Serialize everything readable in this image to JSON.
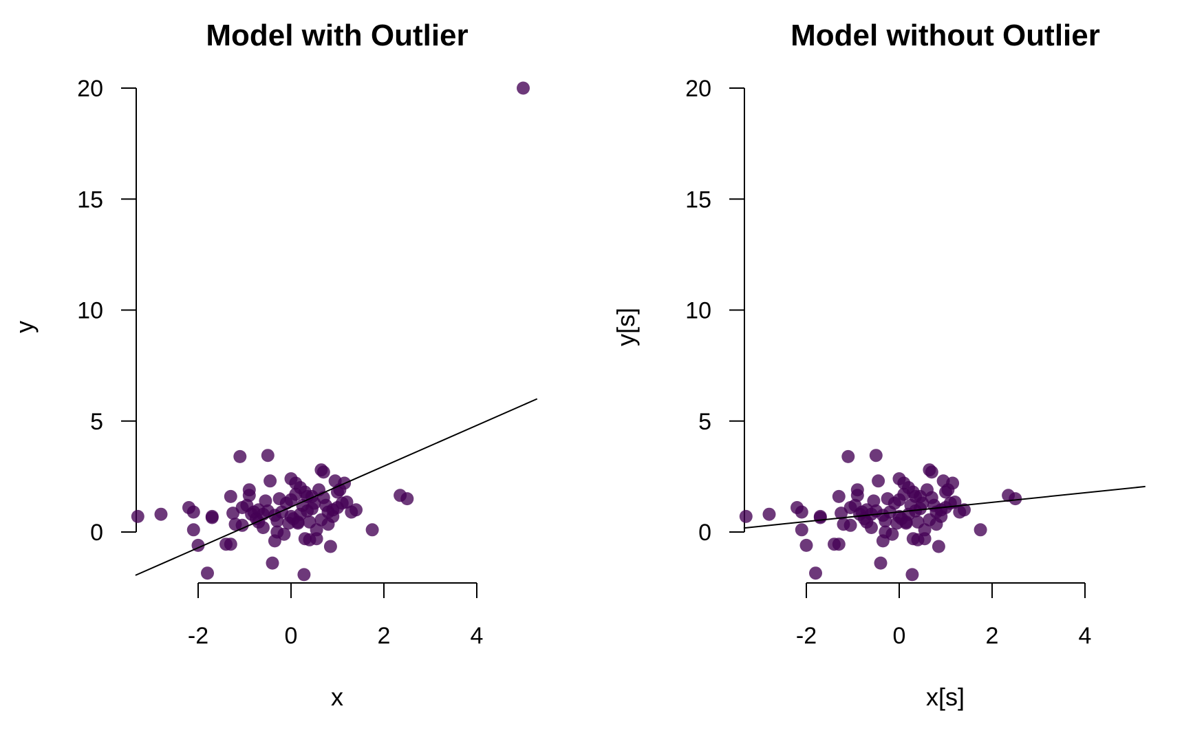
{
  "colors": {
    "point_fill": "#440154",
    "point_opacity": 0.78,
    "line": "#000000",
    "axis": "#000000",
    "background": "#ffffff"
  },
  "chart_data": [
    {
      "type": "scatter",
      "title": "Model with Outlier",
      "xlabel": "x",
      "ylabel": "y",
      "xticks": [
        -2,
        0,
        2,
        4
      ],
      "yticks": [
        0,
        5,
        10,
        15,
        20
      ],
      "xlim": [
        -3.35,
        5.3
      ],
      "ylim": [
        -2.2,
        20.2
      ],
      "grid": false,
      "legend": "none",
      "regression_line": {
        "x": [
          -3.35,
          5.3
        ],
        "y": [
          -1.95,
          6.0
        ]
      },
      "points": {
        "x": [
          -3.3,
          -2.8,
          -2.2,
          -2.1,
          -2.1,
          -2.0,
          -1.8,
          -1.7,
          -1.7,
          -1.4,
          -1.3,
          -1.3,
          -1.25,
          -1.2,
          -1.1,
          -1.05,
          -0.95,
          -0.9,
          -0.9,
          -0.85,
          -0.8,
          -0.75,
          -0.7,
          -0.6,
          -0.55,
          -0.5,
          -0.45,
          -0.4,
          -0.35,
          -0.35,
          -0.3,
          -0.25,
          -0.2,
          -0.15,
          -0.1,
          -0.05,
          0.0,
          0.0,
          0.05,
          0.1,
          0.1,
          0.15,
          0.2,
          0.2,
          0.25,
          0.3,
          0.3,
          0.35,
          0.35,
          0.4,
          0.4,
          0.45,
          0.5,
          0.55,
          0.6,
          0.65,
          0.65,
          0.7,
          0.7,
          0.75,
          0.8,
          0.8,
          0.85,
          0.9,
          0.95,
          1.0,
          1.0,
          1.05,
          1.1,
          1.15,
          1.2,
          1.3,
          1.4,
          1.75,
          2.35,
          2.5,
          0.28,
          -1.05,
          -0.5,
          -0.6,
          -0.3,
          0.0,
          0.45,
          0.9,
          -0.7,
          0.15,
          0.55,
          5.0
        ],
        "y": [
          0.7,
          0.8,
          1.1,
          0.9,
          0.1,
          -0.6,
          -1.85,
          0.7,
          0.65,
          -0.55,
          -0.55,
          1.6,
          0.85,
          0.35,
          3.4,
          0.3,
          1.2,
          1.65,
          1.9,
          0.8,
          0.9,
          0.6,
          0.45,
          0.2,
          1.4,
          0.95,
          2.3,
          -1.4,
          -0.4,
          0.75,
          0.5,
          1.5,
          0.9,
          -0.1,
          1.3,
          0.4,
          1.45,
          2.4,
          0.6,
          2.2,
          1.7,
          0.4,
          0.8,
          2.0,
          1.2,
          -0.3,
          1.8,
          1.6,
          0.95,
          -0.35,
          0.45,
          1.05,
          1.3,
          0.1,
          1.9,
          2.8,
          0.55,
          2.7,
          1.55,
          1.2,
          0.9,
          0.35,
          -0.65,
          1.0,
          2.3,
          1.8,
          1.1,
          1.9,
          1.3,
          2.2,
          1.35,
          0.9,
          1.0,
          0.1,
          1.65,
          1.5,
          -1.92,
          1.1,
          3.45,
          0.8,
          0.0,
          0.7,
          1.6,
          0.7,
          1.0,
          0.45,
          -0.3,
          20.0
        ]
      }
    },
    {
      "type": "scatter",
      "title": "Model without Outlier",
      "xlabel": "x[s]",
      "ylabel": "y[s]",
      "xticks": [
        -2,
        0,
        2,
        4
      ],
      "yticks": [
        0,
        5,
        10,
        15,
        20
      ],
      "xlim": [
        -3.35,
        5.3
      ],
      "ylim": [
        -2.2,
        20.2
      ],
      "grid": false,
      "legend": "none",
      "regression_line": {
        "x": [
          -3.35,
          5.3
        ],
        "y": [
          0.18,
          2.05
        ]
      },
      "points": {
        "x": [
          -3.3,
          -2.8,
          -2.2,
          -2.1,
          -2.1,
          -2.0,
          -1.8,
          -1.7,
          -1.7,
          -1.4,
          -1.3,
          -1.3,
          -1.25,
          -1.2,
          -1.1,
          -1.05,
          -0.95,
          -0.9,
          -0.9,
          -0.85,
          -0.8,
          -0.75,
          -0.7,
          -0.6,
          -0.55,
          -0.5,
          -0.45,
          -0.4,
          -0.35,
          -0.35,
          -0.3,
          -0.25,
          -0.2,
          -0.15,
          -0.1,
          -0.05,
          0.0,
          0.0,
          0.05,
          0.1,
          0.1,
          0.15,
          0.2,
          0.2,
          0.25,
          0.3,
          0.3,
          0.35,
          0.35,
          0.4,
          0.4,
          0.45,
          0.5,
          0.55,
          0.6,
          0.65,
          0.65,
          0.7,
          0.7,
          0.75,
          0.8,
          0.8,
          0.85,
          0.9,
          0.95,
          1.0,
          1.0,
          1.05,
          1.1,
          1.15,
          1.2,
          1.3,
          1.4,
          1.75,
          2.35,
          2.5,
          0.28,
          -1.05,
          -0.5,
          -0.6,
          -0.3,
          0.0,
          0.45,
          0.9,
          -0.7,
          0.15,
          0.55
        ],
        "y": [
          0.7,
          0.8,
          1.1,
          0.9,
          0.1,
          -0.6,
          -1.85,
          0.7,
          0.65,
          -0.55,
          -0.55,
          1.6,
          0.85,
          0.35,
          3.4,
          0.3,
          1.2,
          1.65,
          1.9,
          0.8,
          0.9,
          0.6,
          0.45,
          0.2,
          1.4,
          0.95,
          2.3,
          -1.4,
          -0.4,
          0.75,
          0.5,
          1.5,
          0.9,
          -0.1,
          1.3,
          0.4,
          1.45,
          2.4,
          0.6,
          2.2,
          1.7,
          0.4,
          0.8,
          2.0,
          1.2,
          -0.3,
          1.8,
          1.6,
          0.95,
          -0.35,
          0.45,
          1.05,
          1.3,
          0.1,
          1.9,
          2.8,
          0.55,
          2.7,
          1.55,
          1.2,
          0.9,
          0.35,
          -0.65,
          1.0,
          2.3,
          1.8,
          1.1,
          1.9,
          1.3,
          2.2,
          1.35,
          0.9,
          1.0,
          0.1,
          1.65,
          1.5,
          -1.92,
          1.1,
          3.45,
          0.8,
          0.0,
          0.7,
          1.6,
          0.7,
          1.0,
          0.45,
          -0.3
        ]
      }
    }
  ]
}
